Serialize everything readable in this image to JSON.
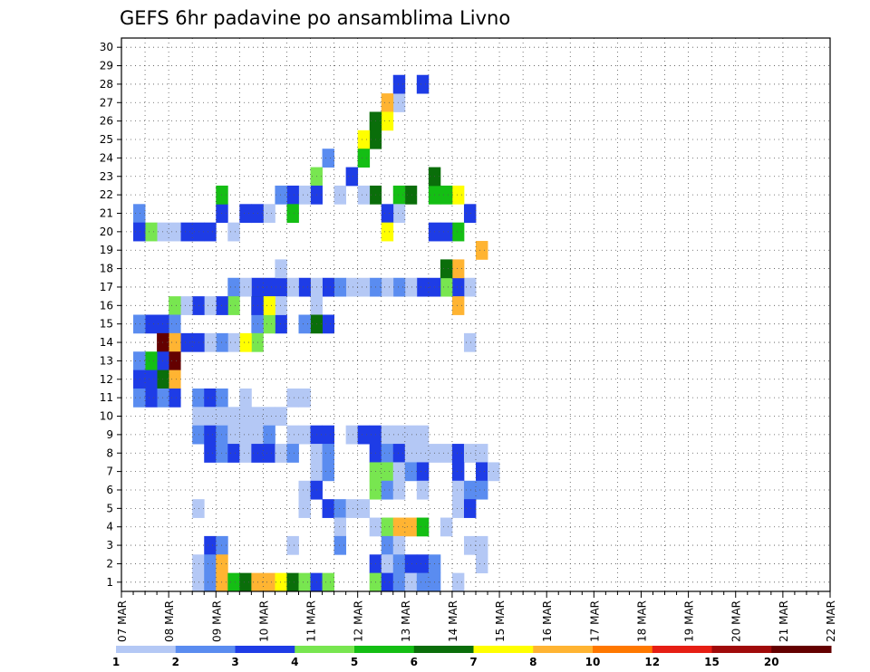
{
  "chart_data": {
    "type": "heatmap",
    "title": "GEFS 6hr padavine po ansamblima Livno",
    "xlabel": "",
    "ylabel": "",
    "x_tick_labels": [
      "07 MAR",
      "08 MAR",
      "09 MAR",
      "10 MAR",
      "11 MAR",
      "12 MAR",
      "13 MAR",
      "14 MAR",
      "15 MAR",
      "16 MAR",
      "17 MAR",
      "18 MAR",
      "19 MAR",
      "20 MAR",
      "21 MAR",
      "22 MAR"
    ],
    "y_tick_labels": [
      "1",
      "2",
      "3",
      "4",
      "5",
      "6",
      "7",
      "8",
      "9",
      "10",
      "11",
      "12",
      "13",
      "14",
      "15",
      "16",
      "17",
      "18",
      "19",
      "20",
      "21",
      "22",
      "23",
      "24",
      "25",
      "26",
      "27",
      "28",
      "29",
      "30"
    ],
    "x_slots": 60,
    "slot_hours": 6,
    "y_range": [
      1,
      30
    ],
    "grid": true,
    "legend": {
      "position": "bottom",
      "labels": [
        "1",
        "2",
        "3",
        "4",
        "5",
        "6",
        "7",
        "8",
        "10",
        "12",
        "15",
        "20"
      ],
      "colors": [
        "#b4c8f5",
        "#5a8cf0",
        "#1e3ce6",
        "#78e650",
        "#14be14",
        "#0a6e0a",
        "#ffff00",
        "#ffb432",
        "#ff7800",
        "#e61e14",
        "#a00a0a",
        "#640000"
      ]
    },
    "cells": [
      [
        3,
        30,
        1
      ],
      [
        14,
        29,
        1
      ],
      [
        19,
        30,
        8
      ],
      [
        21,
        29,
        3
      ],
      [
        20,
        28,
        5
      ],
      [
        22,
        28,
        7
      ],
      [
        20,
        27,
        3
      ],
      [
        22,
        27,
        5
      ],
      [
        20,
        26,
        3
      ],
      [
        22,
        26,
        5
      ],
      [
        23,
        26,
        6
      ],
      [
        22,
        24,
        6
      ],
      [
        22,
        23,
        5
      ],
      [
        21,
        23,
        1
      ],
      [
        21,
        22,
        3
      ],
      [
        22,
        21,
        6
      ],
      [
        20,
        22,
        7
      ],
      [
        28,
        25,
        3
      ],
      [
        27,
        23,
        1
      ],
      [
        28,
        23,
        3
      ],
      [
        27,
        22,
        8
      ],
      [
        26,
        22,
        7
      ],
      [
        26,
        21,
        6
      ],
      [
        25,
        21,
        6
      ],
      [
        25,
        20,
        7
      ],
      [
        24,
        20,
        5
      ],
      [
        23,
        19,
        3
      ],
      [
        22,
        20,
        1
      ],
      [
        22,
        18,
        1
      ],
      [
        24,
        17,
        2
      ],
      [
        23,
        16,
        4
      ],
      [
        22,
        16,
        3
      ],
      [
        22,
        15,
        1
      ],
      [
        22,
        14,
        3
      ],
      [
        21,
        14,
        5
      ],
      [
        22,
        13,
        2
      ],
      [
        21,
        12,
        1
      ],
      [
        21,
        11,
        3
      ],
      [
        21,
        10,
        3
      ],
      [
        21,
        8,
        3
      ],
      [
        22,
        8,
        5
      ],
      [
        20,
        9,
        1
      ],
      [
        20,
        7,
        3
      ],
      [
        20,
        6,
        3
      ],
      [
        20,
        5,
        3
      ],
      [
        20,
        4,
        1
      ],
      [
        20,
        3,
        1
      ],
      [
        20,
        2,
        4
      ],
      [
        21,
        1,
        2
      ],
      [
        20,
        1,
        3
      ],
      [
        17,
        29,
        1
      ],
      [
        17,
        28,
        3
      ],
      [
        16,
        28,
        8
      ],
      [
        18,
        28,
        8
      ],
      [
        17,
        27,
        4
      ],
      [
        18,
        27,
        6
      ],
      [
        17,
        26,
        3
      ],
      [
        17,
        25,
        3
      ],
      [
        17,
        24,
        1
      ],
      [
        17,
        23,
        2
      ],
      [
        17,
        22,
        1
      ],
      [
        17,
        21,
        2
      ],
      [
        17,
        20,
        1
      ],
      [
        17,
        19,
        1
      ],
      [
        17,
        18,
        2
      ],
      [
        17,
        17,
        3
      ],
      [
        16,
        16,
        1
      ],
      [
        17,
        16,
        1
      ],
      [
        17,
        15,
        3
      ],
      [
        17,
        14,
        1
      ],
      [
        17,
        13,
        3
      ],
      [
        18,
        13,
        1
      ],
      [
        17,
        12,
        3
      ],
      [
        16,
        12,
        2
      ],
      [
        17,
        11,
        3
      ],
      [
        16,
        11,
        6
      ],
      [
        17,
        10,
        1
      ],
      [
        17,
        9,
        2
      ],
      [
        16,
        9,
        4
      ],
      [
        16,
        8,
        3
      ],
      [
        16,
        7,
        1
      ],
      [
        16,
        6,
        3
      ],
      [
        16,
        5,
        1
      ],
      [
        16,
        4,
        4
      ],
      [
        15,
        4,
        2
      ],
      [
        15,
        3,
        3
      ],
      [
        15,
        2,
        3
      ],
      [
        15,
        1,
        2
      ],
      [
        15,
        17,
        3
      ],
      [
        15,
        16,
        6
      ],
      [
        15,
        15,
        2
      ],
      [
        15,
        13,
        3
      ],
      [
        16,
        13,
        1
      ],
      [
        15,
        12,
        4
      ],
      [
        16,
        12,
        7
      ],
      [
        15,
        11,
        2
      ],
      [
        16,
        11,
        3
      ],
      [
        14,
        11,
        4
      ],
      [
        14,
        10,
        7
      ],
      [
        14,
        9,
        1
      ],
      [
        14,
        8,
        2
      ],
      [
        14,
        7,
        1
      ],
      [
        14,
        6,
        3
      ],
      [
        14,
        5,
        3
      ],
      [
        14,
        4,
        8
      ],
      [
        14,
        3,
        12
      ],
      [
        13,
        4,
        12
      ],
      [
        13,
        3,
        3
      ],
      [
        13,
        2,
        5
      ],
      [
        13,
        1,
        2
      ],
      [
        12,
        4,
        8
      ],
      [
        12,
        3,
        6
      ],
      [
        12,
        2,
        3
      ],
      [
        12,
        1,
        3
      ],
      [
        11,
        4,
        3
      ],
      [
        11,
        3,
        2
      ],
      [
        11,
        2,
        3
      ],
      [
        11,
        1,
        2
      ],
      [
        11,
        10,
        1
      ],
      [
        11,
        14,
        1
      ],
      [
        11,
        15,
        1
      ],
      [
        11,
        6,
        2
      ],
      [
        11,
        7,
        3
      ],
      [
        11,
        8,
        2
      ],
      [
        10,
        6,
        1
      ],
      [
        10,
        7,
        1
      ],
      [
        10,
        8,
        1
      ],
      [
        10,
        9,
        1
      ],
      [
        10,
        10,
        1
      ],
      [
        10,
        11,
        1
      ],
      [
        10,
        12,
        1
      ],
      [
        10,
        13,
        1
      ],
      [
        9,
        6,
        2
      ],
      [
        9,
        7,
        3
      ],
      [
        9,
        8,
        2
      ],
      [
        9,
        9,
        1
      ],
      [
        9,
        10,
        1
      ],
      [
        9,
        11,
        1
      ],
      [
        9,
        12,
        2
      ],
      [
        9,
        14,
        1
      ],
      [
        9,
        15,
        1
      ],
      [
        9,
        16,
        3
      ],
      [
        9,
        17,
        3
      ],
      [
        9,
        19,
        1
      ],
      [
        9,
        20,
        3
      ],
      [
        9,
        21,
        3
      ],
      [
        9,
        22,
        1
      ],
      [
        9,
        23,
        1
      ],
      [
        9,
        24,
        1
      ],
      [
        9,
        25,
        1
      ],
      [
        8,
        7,
        3
      ],
      [
        8,
        8,
        2
      ],
      [
        8,
        9,
        3
      ],
      [
        8,
        10,
        1
      ],
      [
        8,
        11,
        3
      ],
      [
        8,
        12,
        3
      ],
      [
        8,
        13,
        1
      ],
      [
        8,
        14,
        2
      ],
      [
        8,
        16,
        1
      ],
      [
        8,
        17,
        2
      ],
      [
        8,
        21,
        3
      ],
      [
        8,
        22,
        2
      ],
      [
        8,
        23,
        3
      ],
      [
        8,
        24,
        1
      ],
      [
        8,
        25,
        1
      ],
      [
        8,
        26,
        1
      ],
      [
        8,
        27,
        1
      ],
      [
        8,
        28,
        3
      ],
      [
        8,
        29,
        1
      ],
      [
        8,
        30,
        1
      ],
      [
        7,
        16,
        1
      ],
      [
        7,
        17,
        2
      ],
      [
        7,
        21,
        4
      ],
      [
        7,
        22,
        4
      ],
      [
        7,
        23,
        1
      ],
      [
        7,
        24,
        2
      ],
      [
        7,
        25,
        3
      ],
      [
        7,
        28,
        3
      ],
      [
        7,
        30,
        3
      ],
      [
        7,
        31,
        1
      ],
      [
        6,
        15,
        1
      ],
      [
        6,
        16,
        3
      ],
      [
        6,
        21,
        4
      ],
      [
        6,
        22,
        2
      ],
      [
        6,
        23,
        1
      ],
      [
        6,
        25,
        1
      ],
      [
        6,
        28,
        1
      ],
      [
        6,
        29,
        2
      ],
      [
        6,
        30,
        2
      ],
      [
        5,
        6,
        1
      ],
      [
        5,
        15,
        1
      ],
      [
        5,
        17,
        3
      ],
      [
        5,
        18,
        2
      ],
      [
        5,
        19,
        1
      ],
      [
        5,
        20,
        1
      ],
      [
        5,
        28,
        1
      ],
      [
        5,
        29,
        3
      ],
      [
        4,
        18,
        1
      ],
      [
        4,
        21,
        1
      ],
      [
        4,
        22,
        4
      ],
      [
        4,
        23,
        8
      ],
      [
        4,
        24,
        8
      ],
      [
        4,
        25,
        5
      ],
      [
        4,
        27,
        1
      ],
      [
        3,
        7,
        3
      ],
      [
        3,
        8,
        2
      ],
      [
        3,
        14,
        1
      ],
      [
        3,
        18,
        2
      ],
      [
        3,
        22,
        2
      ],
      [
        3,
        23,
        1
      ],
      [
        3,
        29,
        1
      ],
      [
        2,
        6,
        1
      ],
      [
        2,
        7,
        2
      ],
      [
        2,
        8,
        8
      ],
      [
        2,
        21,
        3
      ],
      [
        2,
        22,
        1
      ],
      [
        2,
        23,
        2
      ],
      [
        2,
        24,
        3
      ],
      [
        2,
        25,
        3
      ],
      [
        2,
        26,
        2
      ],
      [
        2,
        30,
        1
      ],
      [
        1,
        6,
        1
      ],
      [
        1,
        7,
        2
      ],
      [
        1,
        8,
        8
      ],
      [
        1,
        9,
        5
      ],
      [
        1,
        10,
        6
      ],
      [
        1,
        11,
        8
      ],
      [
        1,
        12,
        8
      ],
      [
        1,
        13,
        7
      ],
      [
        1,
        14,
        6
      ],
      [
        1,
        15,
        4
      ],
      [
        1,
        16,
        3
      ],
      [
        1,
        17,
        4
      ],
      [
        1,
        21,
        4
      ],
      [
        1,
        22,
        3
      ],
      [
        1,
        23,
        2
      ],
      [
        1,
        24,
        1
      ],
      [
        1,
        25,
        2
      ],
      [
        1,
        26,
        2
      ],
      [
        1,
        28,
        1
      ]
    ],
    "extra_cells_note": ""
  }
}
